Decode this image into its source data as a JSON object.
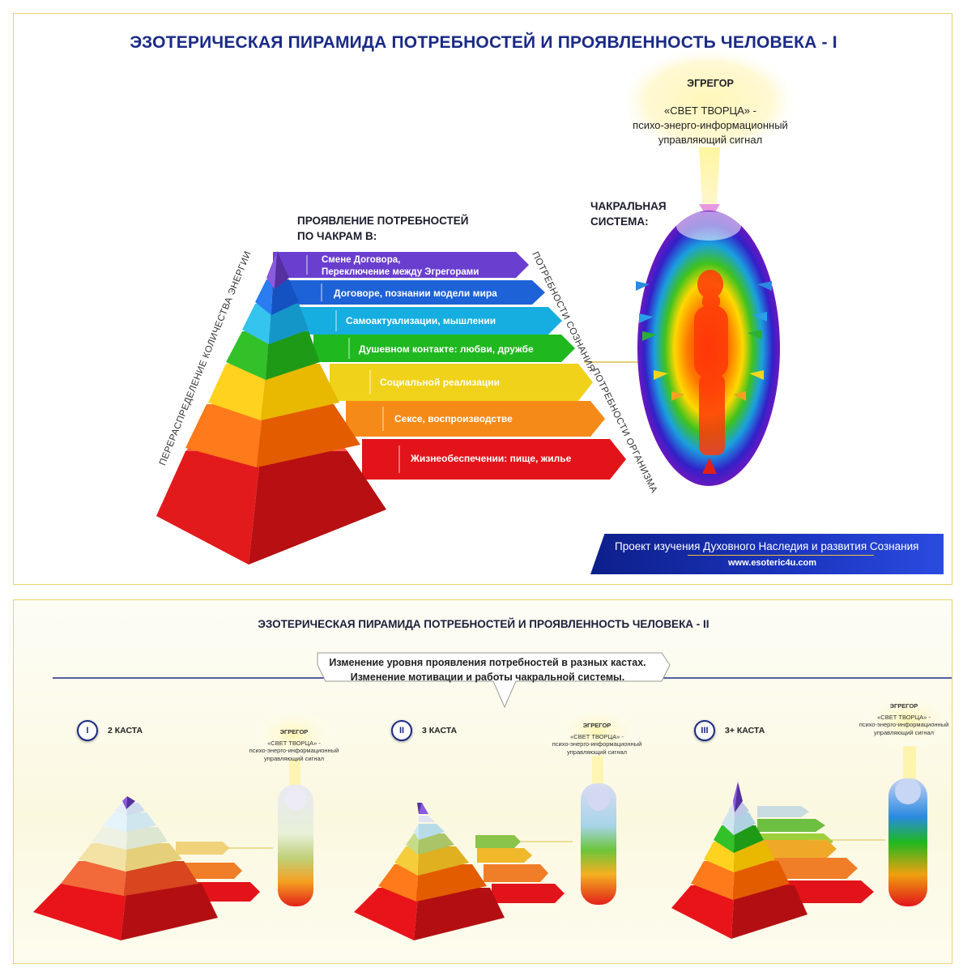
{
  "panel1": {
    "title": "ЭЗОТЕРИЧЕСКАЯ ПИРАМИДА ПОТРЕБНОСТЕЙ И ПРОЯВЛЕННОСТЬ ЧЕЛОВЕКА - I",
    "manifest_heading": [
      "ПРОЯВЛЕНИЕ ПОТРЕБНОСТЕЙ",
      "ПО ЧАКРАМ В:"
    ],
    "side_label_left": "ПЕРЕРАСПРЕДЕЛЕНИЕ КОЛИЧЕСТВА ЭНЕРГИИ",
    "side_label_consciousness": "ПОТРЕБНОСТИ СОЗНАНИЯ",
    "side_label_organism": "ПОТРЕБНОСТИ ОРГАНИЗМА",
    "chakra_heading": [
      "ЧАКРАЛЬНАЯ",
      "СИСТЕМА:"
    ],
    "egregor": {
      "title": "ЭГРЕГОР",
      "lines": [
        "«СВЕТ ТВОРЦА» -",
        "психо-энерго-информационный",
        "управляющий сигнал"
      ]
    },
    "levels": [
      {
        "text_lines": [
          "Смене Договора,",
          "Переключение между Эгрегорами"
        ],
        "color": "#6a3fcf"
      },
      {
        "text_lines": [
          "Договоре, познании модели мира"
        ],
        "color": "#1e62d8"
      },
      {
        "text_lines": [
          "Самоактуализации, мышлении"
        ],
        "color": "#16aee0"
      },
      {
        "text_lines": [
          "Душевном контакте: любви, дружбе"
        ],
        "color": "#1fb81f"
      },
      {
        "text_lines": [
          "Социальной реализации"
        ],
        "color": "#f0d21a"
      },
      {
        "text_lines": [
          "Сексе, воспроизводстве"
        ],
        "color": "#f58a18"
      },
      {
        "text_lines": [
          "Жизнеобеспечении: пище, жилье"
        ],
        "color": "#e2141a"
      }
    ],
    "logo": {
      "line1": "Проект изучения Духовного Наследия и развития Сознания",
      "line2": "www.esoteric4u.com"
    }
  },
  "panel2": {
    "title": "ЭЗОТЕРИЧЕСКАЯ ПИРАМИДА ПОТРЕБНОСТЕЙ И ПРОЯВЛЕННОСТЬ ЧЕЛОВЕКА - II",
    "callout": [
      "Изменение уровня проявления потребностей в разных кастах.",
      "Изменение мотивации и работы чакральной системы."
    ],
    "castes": [
      {
        "numeral": "I",
        "label": "2 КАСТА"
      },
      {
        "numeral": "II",
        "label": "3 КАСТА"
      },
      {
        "numeral": "III",
        "label": "3+ КАСТА"
      }
    ],
    "mini_egregor": {
      "title": "ЭГРЕГОР",
      "lines": [
        "«СВЕТ ТВОРЦА» -",
        "психо-энерго-информационный",
        "управляющий сигнал"
      ]
    }
  }
}
